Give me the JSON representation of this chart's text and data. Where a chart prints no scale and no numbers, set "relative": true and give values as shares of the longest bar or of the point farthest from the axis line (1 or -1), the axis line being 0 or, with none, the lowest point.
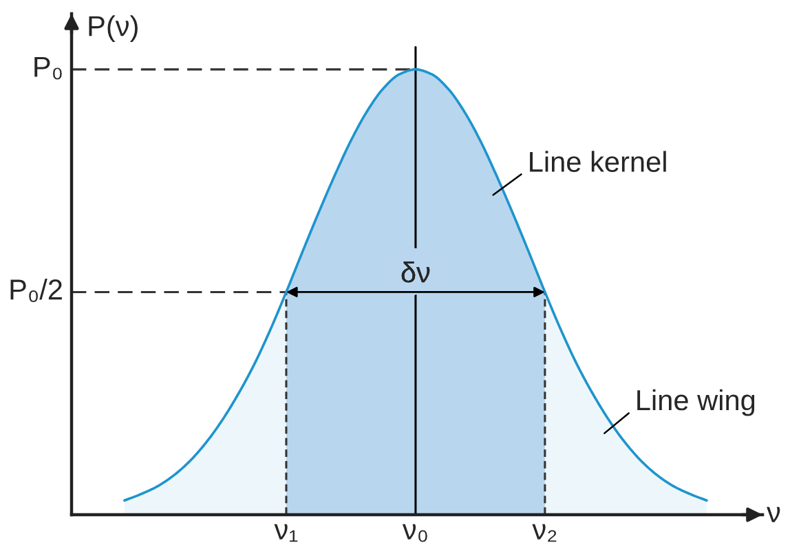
{
  "chart_data": {
    "type": "area",
    "relative": true,
    "xlabel": "ν",
    "ylabel": "P(ν)",
    "color": "#1f94cd",
    "categories": [
      null,
      null,
      null,
      null,
      null,
      null,
      null,
      null,
      null,
      null,
      "ν₁",
      null,
      null,
      null,
      null,
      null,
      null,
      null,
      "ν₀",
      null,
      null,
      null,
      null,
      null,
      null,
      null,
      "ν₂",
      null,
      null,
      null,
      null,
      null,
      null,
      null,
      null,
      null,
      null
    ],
    "values": [
      0.032,
      0.046,
      0.063,
      0.087,
      0.119,
      0.16,
      0.21,
      0.269,
      0.336,
      0.414,
      0.5,
      0.59,
      0.678,
      0.762,
      0.84,
      0.906,
      0.957,
      0.989,
      1.0,
      0.989,
      0.957,
      0.906,
      0.84,
      0.762,
      0.678,
      0.59,
      0.5,
      0.414,
      0.336,
      0.269,
      0.21,
      0.16,
      0.119,
      0.087,
      0.063,
      0.046,
      0.032
    ],
    "ref_lines": [
      {
        "axis": "y",
        "value": 1,
        "label": "P₀",
        "line_style": "dashed"
      },
      {
        "axis": "y",
        "value": 0.5,
        "label": "P₀/2",
        "line_style": "dashed"
      },
      {
        "axis": "x",
        "value": "ν₁",
        "line_style": "dashed"
      },
      {
        "axis": "x",
        "value": "ν₀",
        "line_style": "solid"
      },
      {
        "axis": "x",
        "value": "ν₂",
        "line_style": "dashed"
      }
    ],
    "bands": [
      {
        "axis": "x",
        "from": "ν₁",
        "to": "ν₂",
        "label": "Line kernel",
        "color": "#c7dcf2"
      }
    ],
    "annotations": [
      {
        "text": "δν",
        "x": "ν₀",
        "y": 0.5
      },
      "Line wing"
    ]
  }
}
